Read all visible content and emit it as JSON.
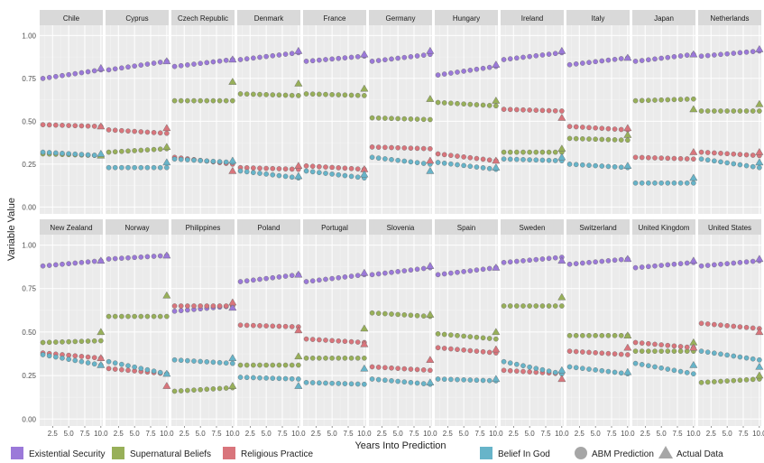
{
  "chart_data": {
    "type": "scatter",
    "ylabel": "Variable Value",
    "xlabel": "Years Into Prediction",
    "xlim": [
      0.5,
      10.3
    ],
    "ylim": [
      -0.04,
      1.06
    ],
    "x_ticks": [
      2.5,
      5.0,
      7.5,
      10.0
    ],
    "x_tick_labels": [
      "2.5",
      "5.0",
      "7.5",
      "10.0"
    ],
    "y_ticks": [
      0.0,
      0.25,
      0.5,
      0.75,
      1.0
    ],
    "y_tick_labels": [
      "0.00",
      "0.25",
      "0.50",
      "0.75",
      "1.00"
    ],
    "grid": true,
    "legend_position": "bottom",
    "series": [
      {
        "key": "es",
        "name": "Existential Security",
        "color": "#9b79d9"
      },
      {
        "key": "sb",
        "name": "Supernatural Beliefs",
        "color": "#98b059"
      },
      {
        "key": "rp",
        "name": "Religious Practice",
        "color": "#d9757c"
      },
      {
        "key": "bg",
        "name": "Belief In God",
        "color": "#67b4c9"
      }
    ],
    "marker_legend": [
      {
        "name": "ABM Prediction",
        "shape": "circle"
      },
      {
        "name": "Actual Data",
        "shape": "triangle"
      }
    ],
    "x": [
      1,
      2,
      3,
      4,
      5,
      6,
      7,
      8,
      9,
      10
    ],
    "panels": [
      {
        "name": "Chile",
        "es": [
          0.75,
          0.8
        ],
        "sb": [
          0.31,
          0.3
        ],
        "rp": [
          0.48,
          0.47
        ],
        "bg": [
          0.32,
          0.3
        ],
        "actual": {
          "es": 0.81,
          "sb": 0.3,
          "rp": 0.47,
          "bg": 0.31
        }
      },
      {
        "name": "Cyprus",
        "es": [
          0.8,
          0.85
        ],
        "sb": [
          0.32,
          0.34
        ],
        "rp": [
          0.45,
          0.43
        ],
        "bg": [
          0.23,
          0.23
        ],
        "actual": {
          "es": 0.85,
          "sb": 0.35,
          "rp": 0.46,
          "bg": 0.26
        }
      },
      {
        "name": "Czech Republic",
        "es": [
          0.82,
          0.86
        ],
        "sb": [
          0.62,
          0.62
        ],
        "rp": [
          0.29,
          0.25
        ],
        "bg": [
          0.28,
          0.26
        ],
        "actual": {
          "es": 0.86,
          "sb": 0.73,
          "rp": 0.21,
          "bg": 0.27
        }
      },
      {
        "name": "Denmark",
        "es": [
          0.86,
          0.9
        ],
        "sb": [
          0.66,
          0.65
        ],
        "rp": [
          0.23,
          0.22
        ],
        "bg": [
          0.21,
          0.17
        ],
        "actual": {
          "es": 0.91,
          "sb": 0.72,
          "rp": 0.24,
          "bg": 0.18
        }
      },
      {
        "name": "France",
        "es": [
          0.85,
          0.88
        ],
        "sb": [
          0.66,
          0.65
        ],
        "rp": [
          0.24,
          0.22
        ],
        "bg": [
          0.21,
          0.17
        ],
        "actual": {
          "es": 0.89,
          "sb": 0.69,
          "rp": 0.22,
          "bg": 0.19
        }
      },
      {
        "name": "Germany",
        "es": [
          0.85,
          0.89
        ],
        "sb": [
          0.52,
          0.51
        ],
        "rp": [
          0.35,
          0.34
        ],
        "bg": [
          0.29,
          0.25
        ],
        "actual": {
          "es": 0.91,
          "sb": 0.63,
          "rp": 0.27,
          "bg": 0.21
        }
      },
      {
        "name": "Hungary",
        "es": [
          0.77,
          0.82
        ],
        "sb": [
          0.61,
          0.59
        ],
        "rp": [
          0.31,
          0.27
        ],
        "bg": [
          0.26,
          0.22
        ],
        "actual": {
          "es": 0.83,
          "sb": 0.62,
          "rp": 0.27,
          "bg": 0.23
        }
      },
      {
        "name": "Ireland",
        "es": [
          0.86,
          0.9
        ],
        "sb": [
          0.32,
          0.32
        ],
        "rp": [
          0.57,
          0.56
        ],
        "bg": [
          0.28,
          0.27
        ],
        "actual": {
          "es": 0.91,
          "sb": 0.34,
          "rp": 0.52,
          "bg": 0.29
        }
      },
      {
        "name": "Italy",
        "es": [
          0.83,
          0.87
        ],
        "sb": [
          0.4,
          0.39
        ],
        "rp": [
          0.47,
          0.45
        ],
        "bg": [
          0.25,
          0.23
        ],
        "actual": {
          "es": 0.87,
          "sb": 0.42,
          "rp": 0.46,
          "bg": 0.24
        }
      },
      {
        "name": "Japan",
        "es": [
          0.85,
          0.89
        ],
        "sb": [
          0.62,
          0.63
        ],
        "rp": [
          0.29,
          0.28
        ],
        "bg": [
          0.14,
          0.14
        ],
        "actual": {
          "es": 0.89,
          "sb": 0.57,
          "rp": 0.32,
          "bg": 0.17
        }
      },
      {
        "name": "Netherlands",
        "es": [
          0.88,
          0.91
        ],
        "sb": [
          0.56,
          0.56
        ],
        "rp": [
          0.32,
          0.3
        ],
        "bg": [
          0.28,
          0.23
        ],
        "actual": {
          "es": 0.92,
          "sb": 0.6,
          "rp": 0.32,
          "bg": 0.26
        }
      },
      {
        "name": "New Zealand",
        "es": [
          0.88,
          0.91
        ],
        "sb": [
          0.44,
          0.45
        ],
        "rp": [
          0.38,
          0.35
        ],
        "bg": [
          0.37,
          0.31
        ],
        "actual": {
          "es": 0.91,
          "sb": 0.5,
          "rp": 0.35,
          "bg": 0.31
        }
      },
      {
        "name": "Norway",
        "es": [
          0.92,
          0.94
        ],
        "sb": [
          0.59,
          0.59
        ],
        "rp": [
          0.29,
          0.26
        ],
        "bg": [
          0.33,
          0.26
        ],
        "actual": {
          "es": 0.94,
          "sb": 0.71,
          "rp": 0.19,
          "bg": 0.26
        }
      },
      {
        "name": "Philippines",
        "es": [
          0.62,
          0.65
        ],
        "sb": [
          0.16,
          0.18
        ],
        "rp": [
          0.65,
          0.65
        ],
        "bg": [
          0.34,
          0.32
        ],
        "actual": {
          "es": 0.64,
          "sb": 0.19,
          "rp": 0.67,
          "bg": 0.35
        }
      },
      {
        "name": "Poland",
        "es": [
          0.79,
          0.83
        ],
        "sb": [
          0.31,
          0.31
        ],
        "rp": [
          0.54,
          0.53
        ],
        "bg": [
          0.24,
          0.23
        ],
        "actual": {
          "es": 0.83,
          "sb": 0.36,
          "rp": 0.51,
          "bg": 0.19
        }
      },
      {
        "name": "Portugal",
        "es": [
          0.79,
          0.83
        ],
        "sb": [
          0.35,
          0.35
        ],
        "rp": [
          0.46,
          0.44
        ],
        "bg": [
          0.21,
          0.2
        ],
        "actual": {
          "es": 0.84,
          "sb": 0.52,
          "rp": 0.43,
          "bg": 0.29
        }
      },
      {
        "name": "Slovenia",
        "es": [
          0.83,
          0.87
        ],
        "sb": [
          0.61,
          0.59
        ],
        "rp": [
          0.3,
          0.28
        ],
        "bg": [
          0.23,
          0.2
        ],
        "actual": {
          "es": 0.88,
          "sb": 0.6,
          "rp": 0.34,
          "bg": 0.21
        }
      },
      {
        "name": "Spain",
        "es": [
          0.83,
          0.87
        ],
        "sb": [
          0.49,
          0.46
        ],
        "rp": [
          0.41,
          0.38
        ],
        "bg": [
          0.23,
          0.22
        ],
        "actual": {
          "es": 0.87,
          "sb": 0.5,
          "rp": 0.4,
          "bg": 0.23
        }
      },
      {
        "name": "Sweden",
        "es": [
          0.9,
          0.93
        ],
        "sb": [
          0.65,
          0.65
        ],
        "rp": [
          0.28,
          0.26
        ],
        "bg": [
          0.33,
          0.26
        ],
        "actual": {
          "es": 0.91,
          "sb": 0.7,
          "rp": 0.23,
          "bg": 0.28
        }
      },
      {
        "name": "Switzerland",
        "es": [
          0.89,
          0.92
        ],
        "sb": [
          0.48,
          0.48
        ],
        "rp": [
          0.39,
          0.37
        ],
        "bg": [
          0.3,
          0.26
        ],
        "actual": {
          "es": 0.92,
          "sb": 0.48,
          "rp": 0.41,
          "bg": 0.27
        }
      },
      {
        "name": "United Kingdom",
        "es": [
          0.87,
          0.9
        ],
        "sb": [
          0.39,
          0.39
        ],
        "rp": [
          0.44,
          0.41
        ],
        "bg": [
          0.32,
          0.26
        ],
        "actual": {
          "es": 0.91,
          "sb": 0.44,
          "rp": 0.41,
          "bg": 0.31
        }
      },
      {
        "name": "United States",
        "es": [
          0.88,
          0.91
        ],
        "sb": [
          0.21,
          0.23
        ],
        "rp": [
          0.55,
          0.52
        ],
        "bg": [
          0.39,
          0.34
        ],
        "actual": {
          "es": 0.92,
          "sb": 0.25,
          "rp": 0.5,
          "bg": 0.3
        }
      }
    ]
  }
}
